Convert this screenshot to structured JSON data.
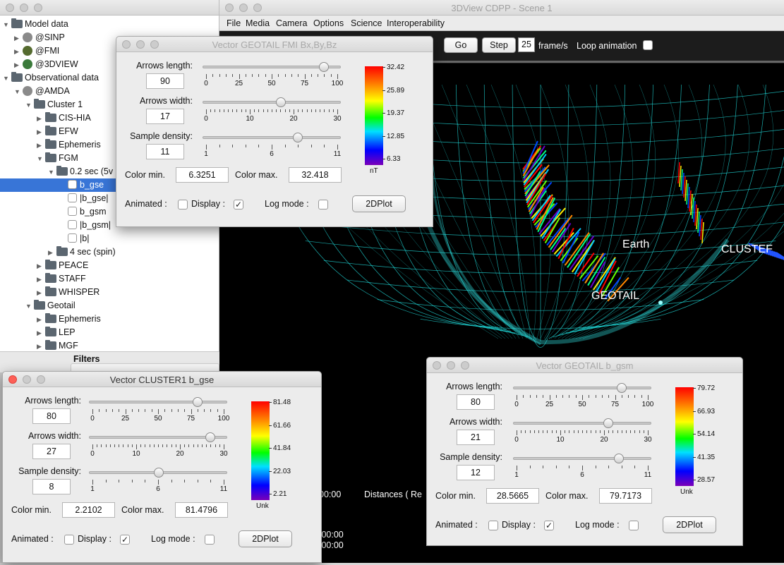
{
  "tree_window": {
    "items": [
      {
        "label": "Model data",
        "level": 0,
        "kind": "folder",
        "open": true
      },
      {
        "label": "@SINP",
        "level": 1,
        "kind": "provider",
        "open": false
      },
      {
        "label": "@FMI",
        "level": 1,
        "kind": "provider",
        "open": false
      },
      {
        "label": "@3DVIEW",
        "level": 1,
        "kind": "provider",
        "open": false
      },
      {
        "label": "Observational data",
        "level": 0,
        "kind": "folder",
        "open": true
      },
      {
        "label": "@AMDA",
        "level": 1,
        "kind": "provider",
        "open": true
      },
      {
        "label": "Cluster 1",
        "level": 2,
        "kind": "folder",
        "open": true
      },
      {
        "label": "CIS-HIA",
        "level": 3,
        "kind": "folder",
        "open": false
      },
      {
        "label": "EFW",
        "level": 3,
        "kind": "folder",
        "open": false
      },
      {
        "label": "Ephemeris",
        "level": 3,
        "kind": "folder",
        "open": false
      },
      {
        "label": "FGM",
        "level": 3,
        "kind": "folder",
        "open": true
      },
      {
        "label": "0.2 sec (5v",
        "level": 4,
        "kind": "folder",
        "open": true
      },
      {
        "label": "b_gse",
        "level": 5,
        "kind": "param",
        "selected": true
      },
      {
        "label": "|b_gse|",
        "level": 5,
        "kind": "param"
      },
      {
        "label": "b_gsm",
        "level": 5,
        "kind": "param"
      },
      {
        "label": "|b_gsm|",
        "level": 5,
        "kind": "param"
      },
      {
        "label": "|b|",
        "level": 5,
        "kind": "param"
      },
      {
        "label": "4 sec (spin)",
        "level": 4,
        "kind": "folder",
        "open": false
      },
      {
        "label": "PEACE",
        "level": 3,
        "kind": "folder",
        "open": false
      },
      {
        "label": "STAFF",
        "level": 3,
        "kind": "folder",
        "open": false
      },
      {
        "label": "WHISPER",
        "level": 3,
        "kind": "folder",
        "open": false
      },
      {
        "label": "Geotail",
        "level": 2,
        "kind": "folder",
        "open": true
      },
      {
        "label": "Ephemeris",
        "level": 3,
        "kind": "folder",
        "open": false
      },
      {
        "label": "LEP",
        "level": 3,
        "kind": "folder",
        "open": false
      },
      {
        "label": "MGF",
        "level": 3,
        "kind": "folder",
        "open": false
      }
    ],
    "filters_label": "Filters"
  },
  "main_window": {
    "title": "3DView CDPP - Scene 1",
    "menu": [
      "File",
      "Media",
      "Camera",
      "Options",
      "Science",
      "Interoperability"
    ],
    "toolbar": {
      "go": "Go",
      "step": "Step",
      "fps_value": "25",
      "fps_unit": "frame/s",
      "loop_label": "Loop animation"
    },
    "scene_labels": {
      "earth": "Earth",
      "geotail": "GEOTAIL",
      "cluster": "CLUSTEF"
    },
    "overlay_text": {
      "time1": "00:00",
      "distances": "Distances ( Re",
      "time2": ":00:00",
      "time3": ":00:00"
    }
  },
  "dialogs": {
    "geotail_fmi": {
      "title": "Vector GEOTAIL FMI  Bx,By,Bz",
      "arrows_length_label": "Arrows length:",
      "arrows_length": "90",
      "length_level": 0.9,
      "length_ticks": [
        "0",
        "25",
        "50",
        "75",
        "100"
      ],
      "arrows_width_label": "Arrows width:",
      "arrows_width": "17",
      "width_level": 0.567,
      "width_ticks": [
        "0",
        "10",
        "20",
        "30"
      ],
      "density_label": "Sample density:",
      "density": "11",
      "density_level": 0.7,
      "density_ticks": [
        "1",
        "6",
        "11"
      ],
      "color_min_label": "Color min.",
      "color_min": "6.3251",
      "color_max_label": "Color max.",
      "color_max": "32.418",
      "colorbar": [
        "32.42",
        "25.89",
        "19.37",
        "12.85",
        "6.33"
      ],
      "unit": "nT",
      "animated_label": "Animated :",
      "display_label": "Display :",
      "log_label": "Log mode :",
      "animated": false,
      "display": true,
      "log": false,
      "plot_button": "2DPlot"
    },
    "cluster_gse": {
      "title": "Vector CLUSTER1 b_gse",
      "arrows_length_label": "Arrows length:",
      "arrows_length": "80",
      "length_level": 0.8,
      "length_ticks": [
        "0",
        "25",
        "50",
        "75",
        "100"
      ],
      "arrows_width_label": "Arrows width:",
      "arrows_width": "27",
      "width_level": 0.9,
      "width_ticks": [
        "0",
        "10",
        "20",
        "30"
      ],
      "density_label": "Sample density:",
      "density": "8",
      "density_level": 0.5,
      "density_ticks": [
        "1",
        "6",
        "11"
      ],
      "color_min_label": "Color min.",
      "color_min": "2.2102",
      "color_max_label": "Color max.",
      "color_max": "81.4796",
      "colorbar": [
        "81.48",
        "61.66",
        "41.84",
        "22.03",
        "2.21"
      ],
      "unit": "Unk",
      "animated_label": "Animated :",
      "display_label": "Display :",
      "log_label": "Log mode :",
      "animated": false,
      "display": true,
      "log": false,
      "plot_button": "2DPlot"
    },
    "geotail_gsm": {
      "title": "Vector GEOTAIL b_gsm",
      "arrows_length_label": "Arrows length:",
      "arrows_length": "80",
      "length_level": 0.8,
      "length_ticks": [
        "0",
        "25",
        "50",
        "75",
        "100"
      ],
      "arrows_width_label": "Arrows width:",
      "arrows_width": "21",
      "width_level": 0.7,
      "width_ticks": [
        "0",
        "10",
        "20",
        "30"
      ],
      "density_label": "Sample density:",
      "density": "12",
      "density_level": 0.78,
      "density_ticks": [
        "1",
        "6",
        "11"
      ],
      "color_min_label": "Color min.",
      "color_min": "28.5665",
      "color_max_label": "Color max.",
      "color_max": "79.7173",
      "colorbar": [
        "79.72",
        "66.93",
        "54.14",
        "41.35",
        "28.57"
      ],
      "unit": "Unk",
      "animated_label": "Animated :",
      "display_label": "Display :",
      "log_label": "Log mode :",
      "animated": false,
      "display": true,
      "log": false,
      "plot_button": "2DPlot"
    }
  }
}
